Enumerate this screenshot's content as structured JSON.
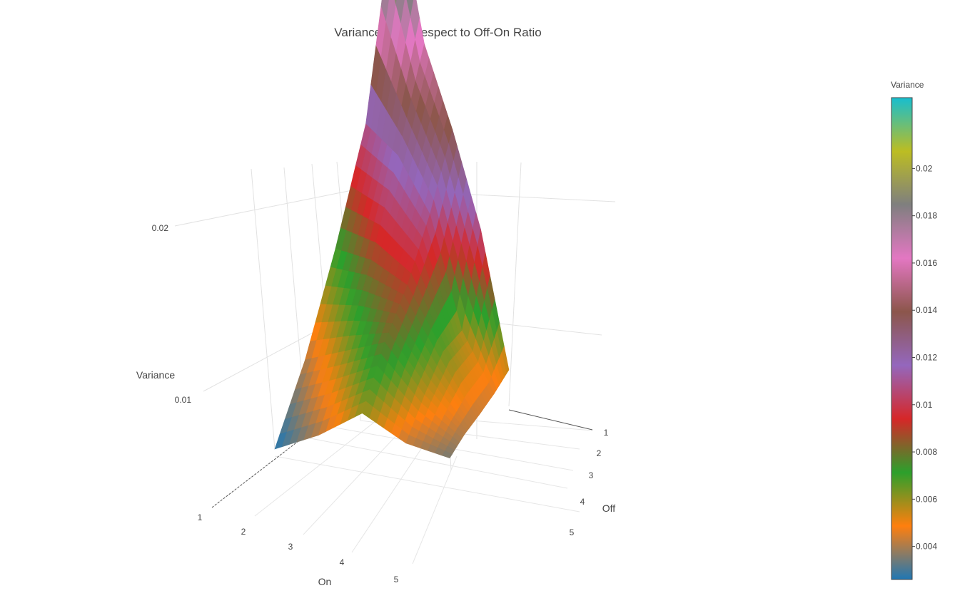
{
  "chart_data": {
    "type": "surface",
    "title": "Variance With Respect to Off-On Ratio",
    "x_label": "On",
    "y_label": "Off",
    "z_label": "Variance",
    "x_ticks": [
      "1",
      "2",
      "3",
      "4",
      "5"
    ],
    "y_ticks": [
      "1",
      "2",
      "3",
      "4",
      "5"
    ],
    "z_ticks": [
      "0.01",
      "0.02"
    ],
    "x": [
      1,
      2,
      3,
      4,
      5
    ],
    "y": [
      1,
      2,
      3,
      4,
      5
    ],
    "z": [
      [
        0.0026,
        0.004,
        0.007,
        0.011,
        0.023
      ],
      [
        0.004,
        0.006,
        0.0085,
        0.012,
        0.016
      ],
      [
        0.006,
        0.008,
        0.009,
        0.011,
        0.014
      ],
      [
        0.0042,
        0.0055,
        0.0065,
        0.0058,
        0.011
      ],
      [
        0.0035,
        0.004,
        0.0042,
        0.0045,
        0.005
      ]
    ],
    "z_range": [
      0.0026,
      0.023
    ],
    "colorbar": {
      "title": "Variance",
      "ticks": [
        "0.004",
        "0.006",
        "0.008",
        "0.01",
        "0.012",
        "0.014",
        "0.016",
        "0.018",
        "0.02"
      ],
      "tick_values": [
        0.004,
        0.006,
        0.008,
        0.01,
        0.012,
        0.014,
        0.016,
        0.018,
        0.02
      ],
      "range": [
        0.0026,
        0.023
      ],
      "colorscale": [
        "#1f77b4",
        "#ff7f0e",
        "#2ca02c",
        "#d62728",
        "#9467bd",
        "#8c564b",
        "#e377c2",
        "#7f7f7f",
        "#bcbd22",
        "#17becf"
      ]
    }
  }
}
